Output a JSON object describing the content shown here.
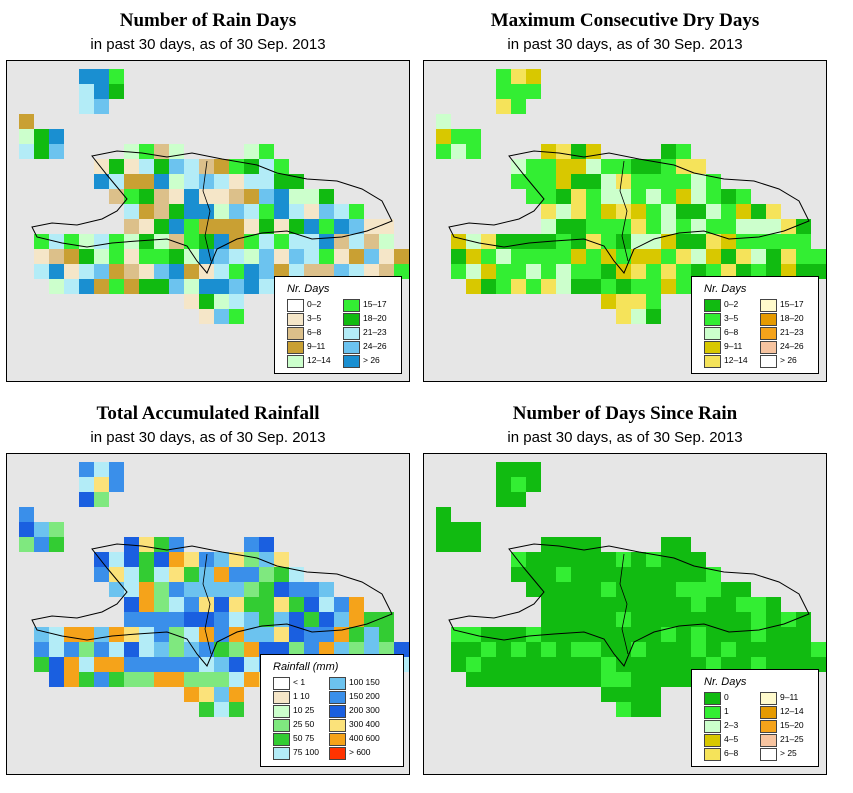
{
  "subtitle": "in past 30 days, as of  30 Sep. 2013",
  "panels": [
    {
      "id": "rain-days",
      "title": "Number of Rain Days",
      "legend_title": "Nr. Days",
      "legend": [
        {
          "label": "0–2",
          "color": "#ffffff"
        },
        {
          "label": "3–5",
          "color": "#f5e6c8"
        },
        {
          "label": "6–8",
          "color": "#dcc08a"
        },
        {
          "label": "9–11",
          "color": "#c9a033"
        },
        {
          "label": "12–14",
          "color": "#ccffcc"
        },
        {
          "label": "15–17",
          "color": "#33ee33"
        },
        {
          "label": "18–20",
          "color": "#11bb11"
        },
        {
          "label": "21–23",
          "color": "#b3ecf7"
        },
        {
          "label": "24–26",
          "color": "#6cc3ef"
        },
        {
          "label": "> 26",
          "color": "#1a8fd1"
        }
      ]
    },
    {
      "id": "dry-days",
      "title": "Maximum Consecutive Dry Days",
      "legend_title": "Nr. Days",
      "legend": [
        {
          "label": "0–2",
          "color": "#11bb11"
        },
        {
          "label": "3–5",
          "color": "#33ee33"
        },
        {
          "label": "6–8",
          "color": "#ccffcc"
        },
        {
          "label": "9–11",
          "color": "#d8c800"
        },
        {
          "label": "12–14",
          "color": "#f5e35a"
        },
        {
          "label": "15–17",
          "color": "#fffacc"
        },
        {
          "label": "18–20",
          "color": "#e59a00"
        },
        {
          "label": "21–23",
          "color": "#f5a31a"
        },
        {
          "label": "24–26",
          "color": "#f7c4a0"
        },
        {
          "label": "> 26",
          "color": "#ffffff"
        }
      ]
    },
    {
      "id": "rainfall",
      "title": "Total Accumulated Rainfall",
      "legend_title": "Rainfall (mm)",
      "legend": [
        {
          "label": "< 1",
          "color": "#ffffff"
        },
        {
          "label": "1    10",
          "color": "#f5e6c8"
        },
        {
          "label": "10    25",
          "color": "#ccffcc"
        },
        {
          "label": "25    50",
          "color": "#7fe87f"
        },
        {
          "label": "50    75",
          "color": "#33cc33"
        },
        {
          "label": "75   100",
          "color": "#b3ecf7"
        },
        {
          "label": "100   150",
          "color": "#6cc3ef"
        },
        {
          "label": "150   200",
          "color": "#3a8fea"
        },
        {
          "label": "200   300",
          "color": "#1a5fe0"
        },
        {
          "label": "300   400",
          "color": "#fbe27a"
        },
        {
          "label": "400   600",
          "color": "#f5a31a"
        },
        {
          "label": "> 600",
          "color": "#ff3300"
        }
      ]
    },
    {
      "id": "days-since-rain",
      "title": "Number of Days Since Rain",
      "legend_title": "Nr. Days",
      "legend": [
        {
          "label": "0",
          "color": "#11bb11"
        },
        {
          "label": "1",
          "color": "#33ee33"
        },
        {
          "label": "2–3",
          "color": "#ccffcc"
        },
        {
          "label": "4–5",
          "color": "#d8c800"
        },
        {
          "label": "6–8",
          "color": "#f5e35a"
        },
        {
          "label": "9–11",
          "color": "#fffacc"
        },
        {
          "label": "12–14",
          "color": "#e59a00"
        },
        {
          "label": "15–20",
          "color": "#f5a31a"
        },
        {
          "label": "21–25",
          "color": "#f7c4a0"
        },
        {
          "label": "> 25",
          "color": "#ffffff"
        }
      ]
    }
  ]
}
